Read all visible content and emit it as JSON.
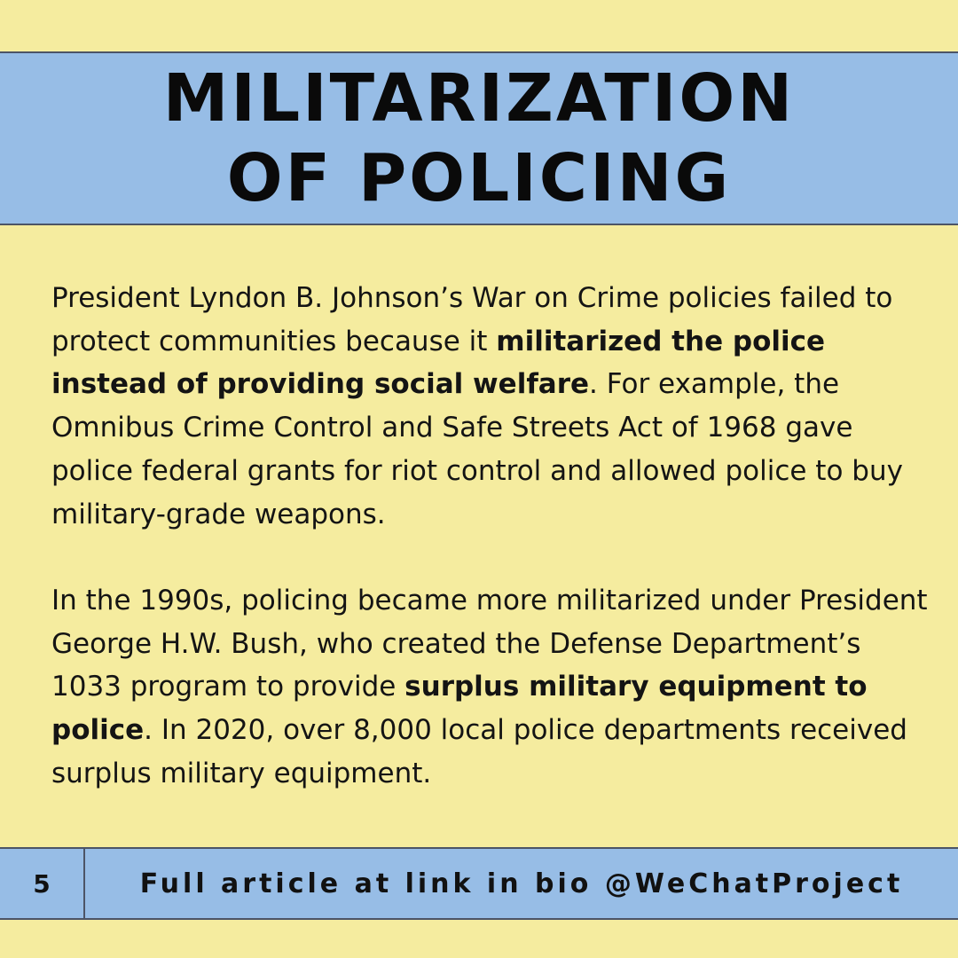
{
  "title": {
    "line1": "MILITARIZATION",
    "line2": "OF POLICING"
  },
  "paragraphs": [
    {
      "seg1": "President Lyndon B. Johnson’s War on Crime policies failed to protect communities because it ",
      "bold1": "militarized the police instead of providing social welfare",
      "seg2": ". For example, the Omnibus Crime Control and Safe Streets Act of 1968 gave police federal grants for riot control and allowed police to buy military-grade weapons."
    },
    {
      "seg1": "In the 1990s, policing became more militarized under President George H.W. Bush, who created the Defense Department’s 1033 program to provide ",
      "bold1": "surplus military equipment to police",
      "seg2": ". In 2020, over 8,000 local police departments received surplus military equipment."
    }
  ],
  "footer": {
    "page_number": "5",
    "text": "Full article at link in bio @WeChatProject"
  },
  "colors": {
    "background": "#f5ec9f",
    "band": "#97bde6",
    "text": "#111111"
  }
}
